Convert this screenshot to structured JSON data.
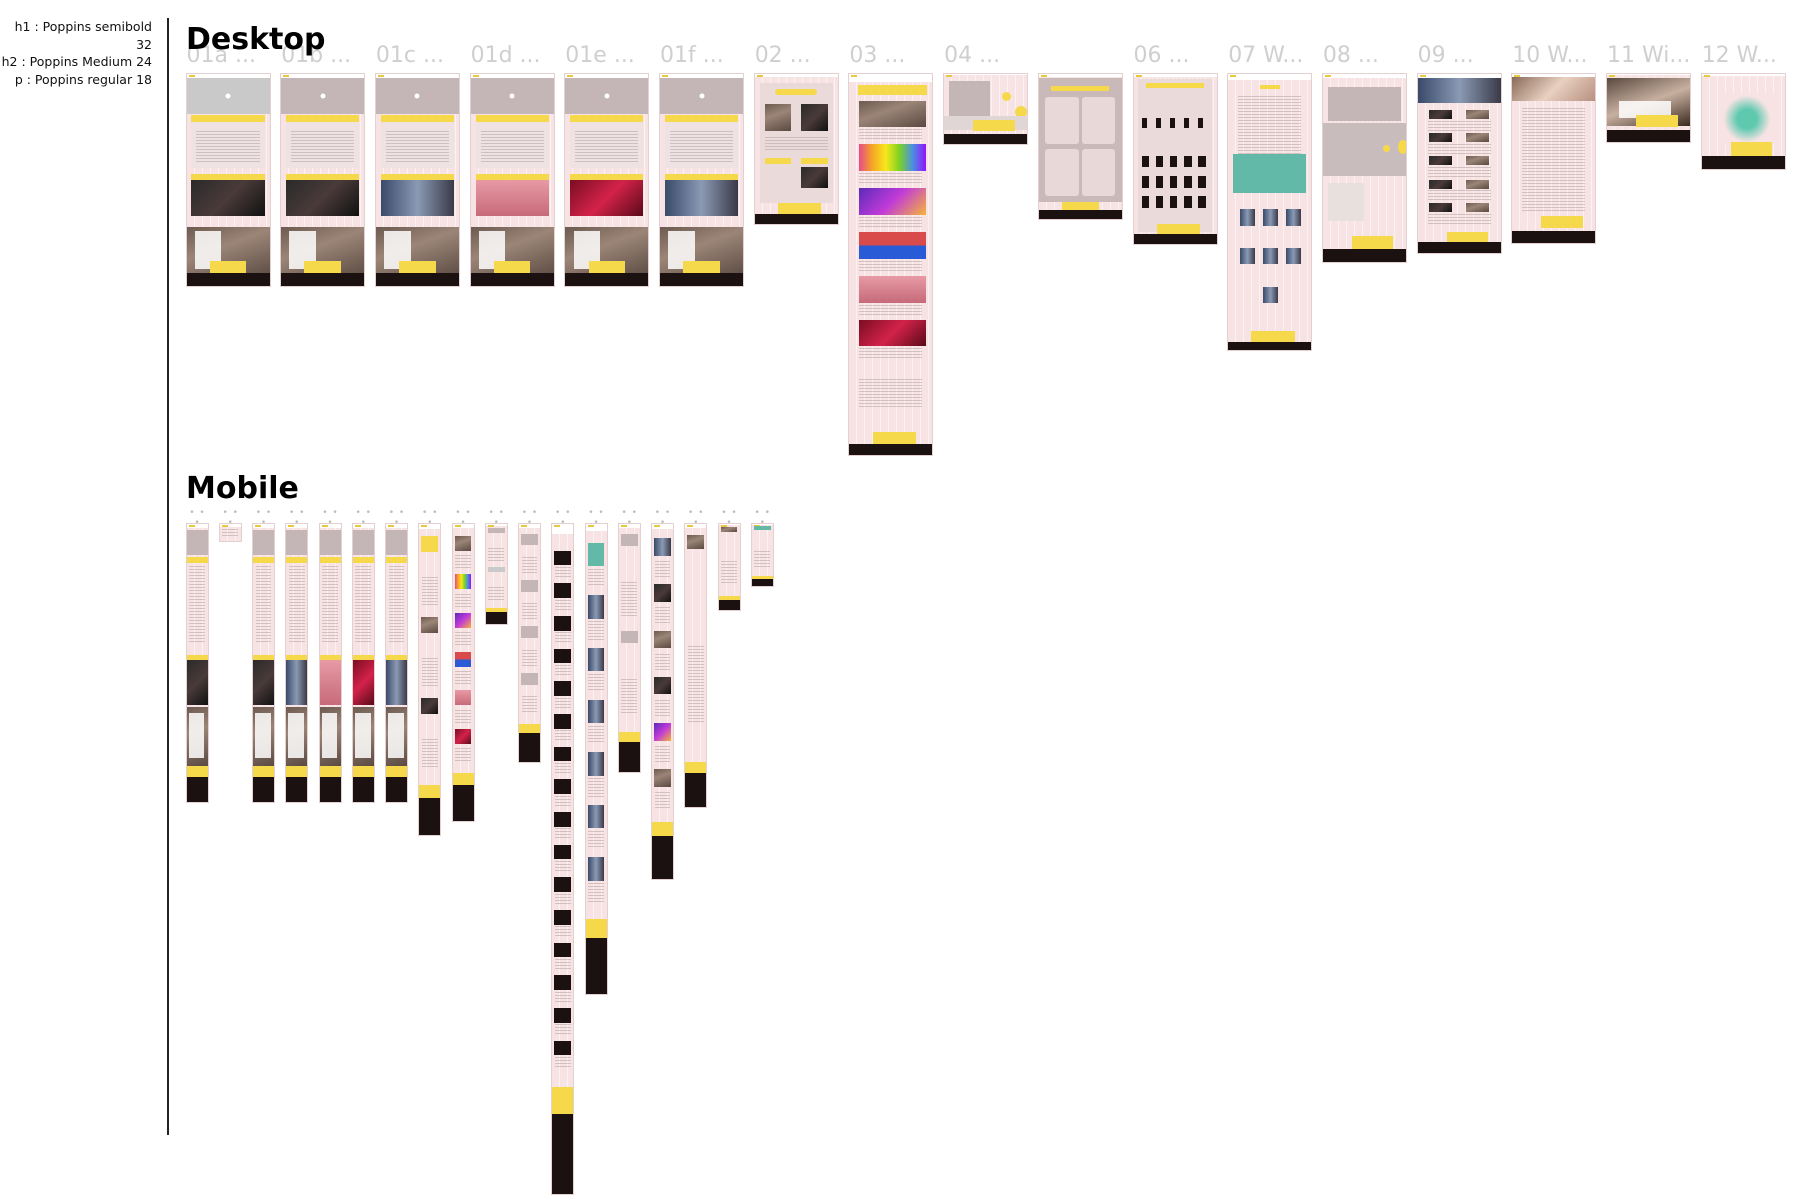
{
  "legend": {
    "h1": "h1 : Poppins semibold 32",
    "h2": "h2 : Poppins Medium 24",
    "p": "p  : Poppins regular 18"
  },
  "desktop": {
    "title": "Desktop",
    "frames": [
      {
        "label": "01a ..."
      },
      {
        "label": "01b ..."
      },
      {
        "label": "01c ..."
      },
      {
        "label": "01d ..."
      },
      {
        "label": "01e ..."
      },
      {
        "label": "01f ..."
      },
      {
        "label": "02 ..."
      },
      {
        "label": "03 ..."
      },
      {
        "label": "04 ..."
      },
      {
        "label": ""
      },
      {
        "label": "06 ..."
      },
      {
        "label": "07 W..."
      },
      {
        "label": "08 ..."
      },
      {
        "label": "09 ..."
      },
      {
        "label": "10 W..."
      },
      {
        "label": "11 Wi..."
      },
      {
        "label": "12 W..."
      }
    ]
  },
  "mobile": {
    "title": "Mobile",
    "frame_label": "• • •",
    "frame_count": 18
  },
  "colors": {
    "frame_bg": "#f7e3e3",
    "accent_yellow": "#f5d94a",
    "footer_dark": "#1b1111",
    "label_grey": "#cfcfcf"
  }
}
